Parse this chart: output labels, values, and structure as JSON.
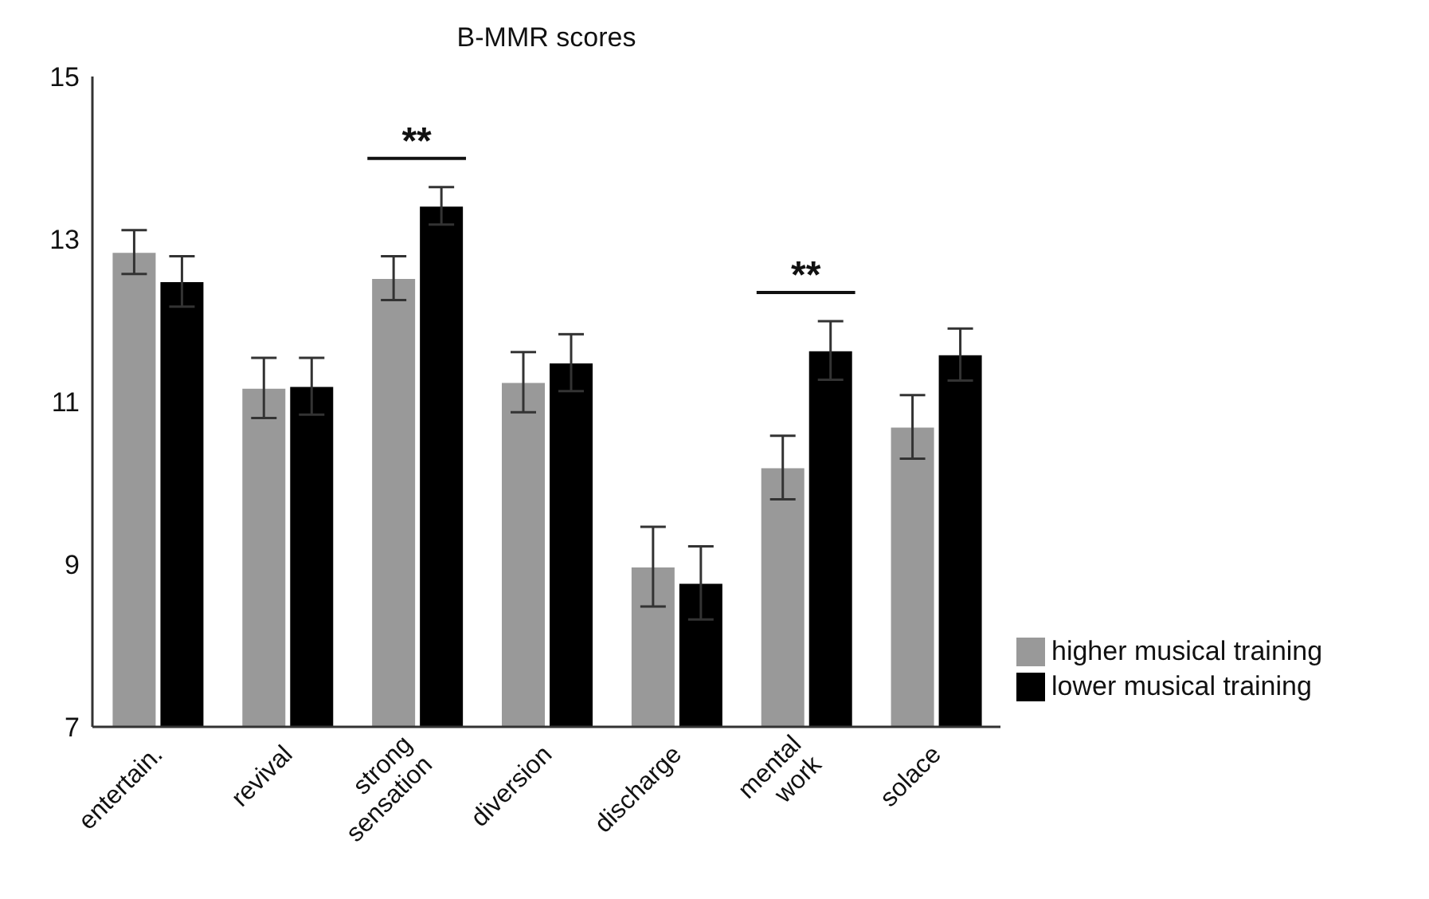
{
  "chart_data": {
    "type": "bar",
    "title": "B-MMR scores",
    "categories": [
      "entertain.",
      "revival",
      "strong sensation",
      "diversion",
      "discharge",
      "mental work",
      "solace"
    ],
    "series": [
      {
        "name": "higher musical training",
        "color": "#999999",
        "values": [
          12.84,
          11.17,
          12.52,
          11.24,
          8.97,
          10.19,
          10.69
        ],
        "errors": [
          0.27,
          0.37,
          0.27,
          0.37,
          0.49,
          0.39,
          0.39
        ]
      },
      {
        "name": "lower musical training",
        "color": "#000000",
        "values": [
          12.48,
          11.19,
          13.41,
          11.48,
          8.77,
          11.63,
          11.58
        ],
        "errors": [
          0.31,
          0.35,
          0.23,
          0.35,
          0.45,
          0.36,
          0.32
        ]
      }
    ],
    "ylim": [
      7,
      15
    ],
    "yticks": [
      7,
      9,
      11,
      13,
      15
    ],
    "annotations": [
      "**",
      "**"
    ],
    "legend": "bottom right"
  }
}
